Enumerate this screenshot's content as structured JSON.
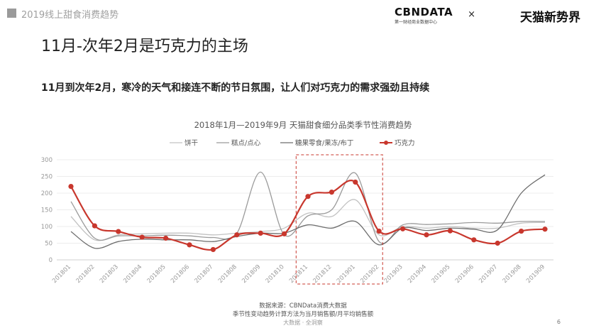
{
  "header": {
    "section_label": "2019线上甜食消费趋势",
    "cbn_word": "CBNDATA",
    "cbn_subtitle": "第一财经商业数据中心",
    "separator": "×",
    "tmall_brand": "天猫新势界"
  },
  "headline": "11月-次年2月是巧克力的主场",
  "subheadline": "11月到次年2月，寒冷的天气和接连不断的节日氛围，让人们对巧克力的需求强劲且持续",
  "chart_data": {
    "type": "line",
    "title": "2018年1月—2019年9月  天猫甜食细分品类季节性消费趋势",
    "xlabel": "",
    "ylabel": "",
    "ylim": [
      0,
      300
    ],
    "yticks": [
      0,
      50,
      100,
      150,
      200,
      250,
      300
    ],
    "grid": true,
    "legend_position": "top-center",
    "categories": [
      "201801",
      "201802",
      "201803",
      "201804",
      "201805",
      "201806",
      "201807",
      "201808",
      "201809",
      "201810",
      "201811",
      "201812",
      "201901",
      "201902",
      "201903",
      "201904",
      "201905",
      "201906",
      "201907",
      "201908",
      "201909"
    ],
    "series": [
      {
        "name": "饼干",
        "color": "#c2c2c2",
        "marker": false,
        "values": [
          130,
          60,
          75,
          78,
          80,
          80,
          75,
          80,
          85,
          95,
          140,
          130,
          180,
          75,
          100,
          95,
          100,
          95,
          95,
          110,
          112
        ]
      },
      {
        "name": "糕点/点心",
        "color": "#9b9b9b",
        "marker": false,
        "values": [
          175,
          65,
          72,
          72,
          74,
          72,
          67,
          80,
          263,
          75,
          132,
          150,
          260,
          55,
          105,
          106,
          108,
          112,
          110,
          115,
          115
        ]
      },
      {
        "name": "糖果零食/果冻/布丁",
        "color": "#6d6d6d",
        "marker": false,
        "values": [
          85,
          35,
          55,
          62,
          60,
          60,
          55,
          70,
          80,
          80,
          105,
          95,
          115,
          45,
          95,
          88,
          95,
          92,
          90,
          200,
          255
        ]
      },
      {
        "name": "巧克力",
        "color": "#c8372d",
        "marker": true,
        "values": [
          220,
          102,
          85,
          68,
          65,
          45,
          31,
          75,
          80,
          78,
          190,
          203,
          233,
          86,
          93,
          75,
          87,
          60,
          50,
          86,
          92
        ]
      }
    ],
    "highlight_range": [
      "201811",
      "201902"
    ]
  },
  "footer": {
    "source": "数据来源：CBNData消费大数据",
    "note": "季节性变动趋势计算方法为当月销售额/月平均销售额",
    "watermark": "大数据 · 全洞察",
    "page_number": "6"
  }
}
